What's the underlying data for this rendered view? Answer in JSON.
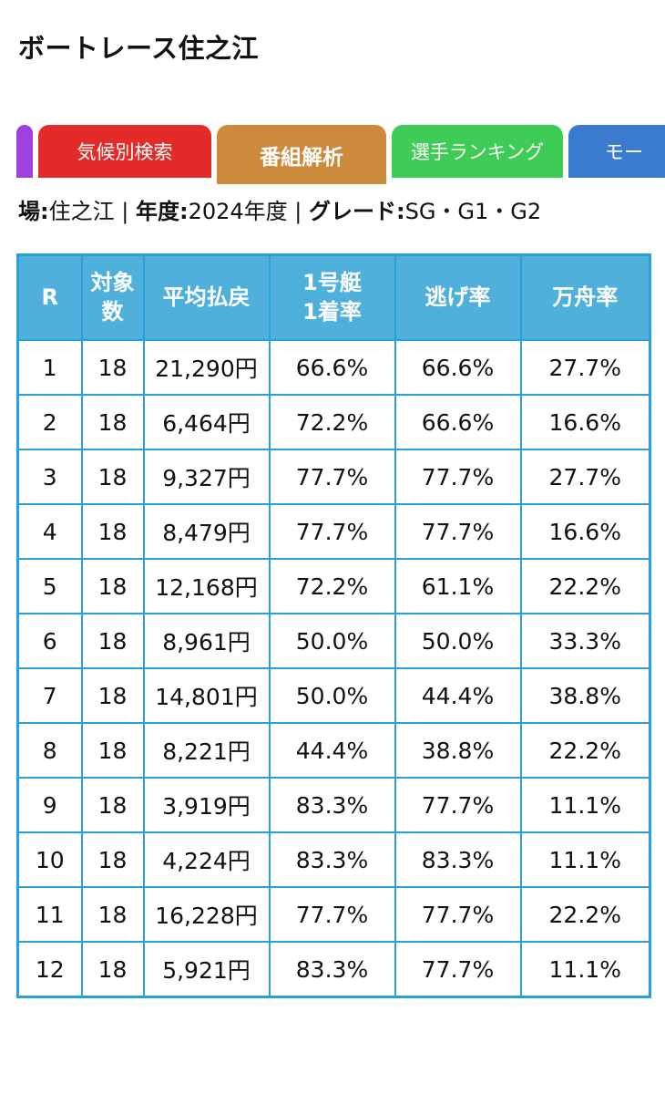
{
  "page": {
    "title": "ボートレース住之江"
  },
  "tabs": [
    {
      "id": "edge",
      "label": ""
    },
    {
      "id": "weather",
      "label": "気候別検索"
    },
    {
      "id": "program",
      "label": "番組解析"
    },
    {
      "id": "ranking",
      "label": "選手ランキング"
    },
    {
      "id": "motor",
      "label": "モー"
    }
  ],
  "info": {
    "venue_label": "場:",
    "venue": "住之江",
    "sep1": " | ",
    "year_label": "年度:",
    "year": "2024年度",
    "sep2": " | ",
    "grade_label": "グレード:",
    "grade": "SG・G1・G2"
  },
  "table": {
    "headers": [
      "R",
      "対象数",
      "平均払戻",
      "1号艇1着率",
      "逃げ率",
      "万舟率"
    ],
    "rows": [
      [
        "1",
        "18",
        "21,290円",
        "66.6%",
        "66.6%",
        "27.7%"
      ],
      [
        "2",
        "18",
        "6,464円",
        "72.2%",
        "66.6%",
        "16.6%"
      ],
      [
        "3",
        "18",
        "9,327円",
        "77.7%",
        "77.7%",
        "27.7%"
      ],
      [
        "4",
        "18",
        "8,479円",
        "77.7%",
        "77.7%",
        "16.6%"
      ],
      [
        "5",
        "18",
        "12,168円",
        "72.2%",
        "61.1%",
        "22.2%"
      ],
      [
        "6",
        "18",
        "8,961円",
        "50.0%",
        "50.0%",
        "33.3%"
      ],
      [
        "7",
        "18",
        "14,801円",
        "50.0%",
        "44.4%",
        "38.8%"
      ],
      [
        "8",
        "18",
        "8,221円",
        "44.4%",
        "38.8%",
        "22.2%"
      ],
      [
        "9",
        "18",
        "3,919円",
        "83.3%",
        "77.7%",
        "11.1%"
      ],
      [
        "10",
        "18",
        "4,224円",
        "83.3%",
        "83.3%",
        "11.1%"
      ],
      [
        "11",
        "18",
        "16,228円",
        "77.7%",
        "77.7%",
        "22.2%"
      ],
      [
        "12",
        "18",
        "5,921円",
        "83.3%",
        "77.7%",
        "11.1%"
      ]
    ]
  },
  "colors": {
    "tab_edge": "#a040e0",
    "tab_weather": "#e52a2a",
    "tab_program": "#cd8a3c",
    "tab_ranking": "#3ecc55",
    "tab_motor": "#3a7bd0",
    "table_header": "#4fb0dc",
    "table_border": "#29a0d8"
  }
}
